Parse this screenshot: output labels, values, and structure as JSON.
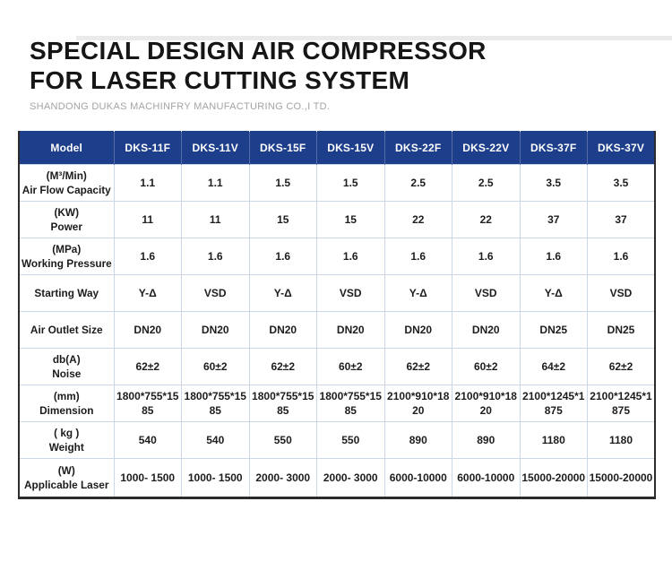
{
  "page": {
    "title_line1": "SPECIAL DESIGN AIR COMPRESSOR",
    "title_line2": "FOR LASER CUTTING SYSTEM",
    "subtitle": "SHANDONG DUKAS MACHINFRY MANUFACTURING CO.,I TD."
  },
  "colors": {
    "header_bg": "#1d3e8a",
    "grid_line": "#ccd8ea",
    "outer_border": "#2b2b2b",
    "top_strip": "#eaeaea",
    "title_text": "#161616",
    "subtitle_text": "#a3a3a3"
  },
  "table": {
    "header": [
      "Model",
      "DKS-11F",
      "DKS-11V",
      "DKS-15F",
      "DKS-15V",
      "DKS-22F",
      "DKS-22V",
      "DKS-37F",
      "DKS-37V"
    ],
    "rows": [
      {
        "unit": "(M³/Min)",
        "label": "Air Flow Capacity",
        "values": [
          "1.1",
          "1.1",
          "1.5",
          "1.5",
          "2.5",
          "2.5",
          "3.5",
          "3.5"
        ]
      },
      {
        "unit": "(KW)",
        "label": "Power",
        "values": [
          "11",
          "11",
          "15",
          "15",
          "22",
          "22",
          "37",
          "37"
        ]
      },
      {
        "unit": "(MPa)",
        "label": "Working Pressure",
        "values": [
          "1.6",
          "1.6",
          "1.6",
          "1.6",
          "1.6",
          "1.6",
          "1.6",
          "1.6"
        ]
      },
      {
        "unit": "",
        "label": "Starting Way",
        "values": [
          "Y-Δ",
          "VSD",
          "Y-Δ",
          "VSD",
          "Y-Δ",
          "VSD",
          "Y-Δ",
          "VSD"
        ]
      },
      {
        "unit": "",
        "label": "Air Outlet Size",
        "values": [
          "DN20",
          "DN20",
          "DN20",
          "DN20",
          "DN20",
          "DN20",
          "DN25",
          "DN25"
        ]
      },
      {
        "unit": "db(A)",
        "label": "Noise",
        "values": [
          "62±2",
          "60±2",
          "62±2",
          "60±2",
          "62±2",
          "60±2",
          "64±2",
          "62±2"
        ]
      },
      {
        "unit": "(mm)",
        "label": "Dimension",
        "values": [
          "1800*755*1585",
          "1800*755*1585",
          "1800*755*1585",
          "1800*755*1585",
          "2100*910*1820",
          "2100*910*1820",
          "2100*1245*1875",
          "2100*1245*1875"
        ]
      },
      {
        "unit": "( kg )",
        "label": "Weight",
        "values": [
          "540",
          "540",
          "550",
          "550",
          "890",
          "890",
          "1180",
          "1180"
        ]
      },
      {
        "unit": "(W)",
        "label": "Applicable Laser",
        "values": [
          "1000- 1500",
          "1000- 1500",
          "2000- 3000",
          "2000- 3000",
          "6000-10000",
          "6000-10000",
          "15000-20000",
          "15000-20000"
        ]
      }
    ]
  }
}
